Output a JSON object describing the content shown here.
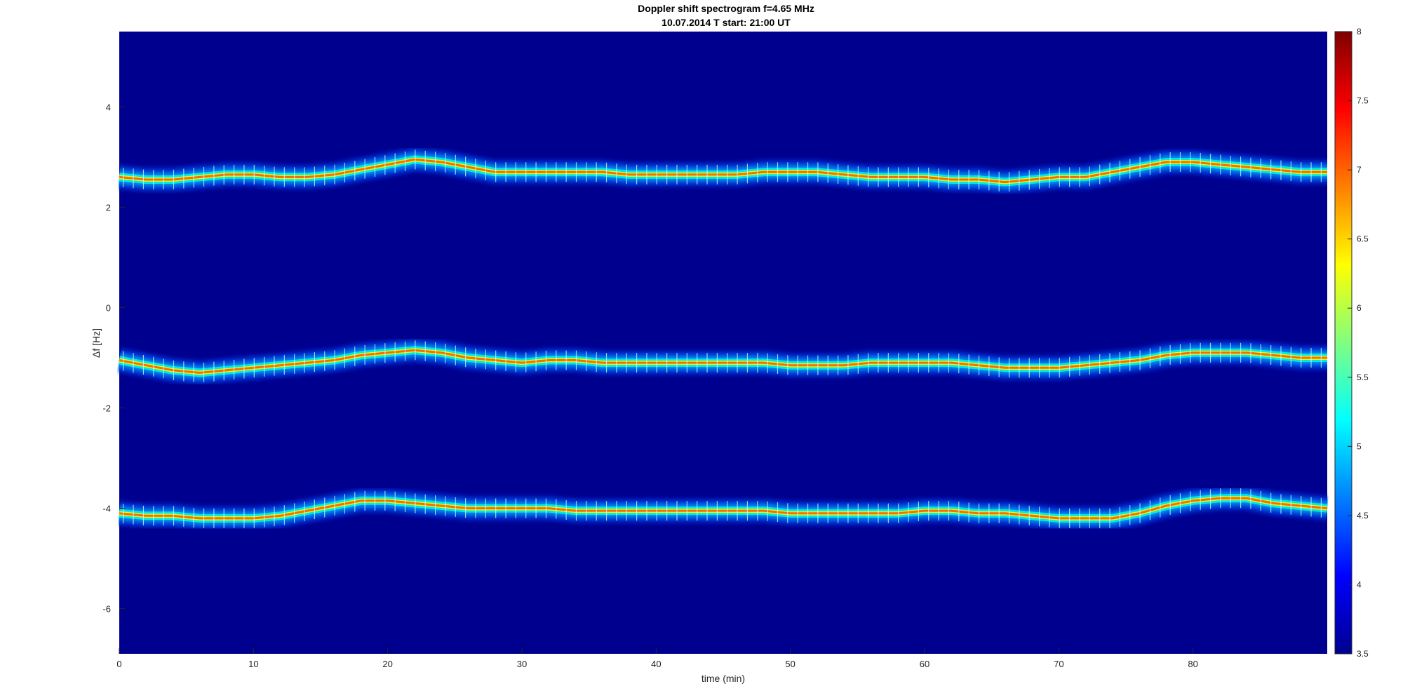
{
  "chart_data": {
    "type": "heatmap",
    "title": "Doppler shift spectrogram f=4.65 MHz",
    "subtitle": "10.07.2014   T start: 21:00 UT",
    "xlabel": "time (min)",
    "ylabel": "Δf [Hz]",
    "xlim": [
      0,
      90
    ],
    "ylim": [
      -6.9,
      5.5
    ],
    "x_ticks": [
      0,
      10,
      20,
      30,
      40,
      50,
      60,
      70,
      80
    ],
    "y_ticks": [
      4,
      2,
      0,
      -2,
      -4,
      -6
    ],
    "colorbar": {
      "colormap": "jet",
      "range": [
        3.5,
        8
      ],
      "ticks": [
        8,
        7.5,
        7,
        6.5,
        6,
        5.5,
        5,
        4.5,
        4,
        3.5
      ]
    },
    "background_color": "#00008f",
    "series": [
      {
        "time": [
          0,
          2,
          4,
          6,
          8,
          10,
          12,
          14,
          16,
          18,
          20,
          22,
          24,
          26,
          28,
          30,
          32,
          34,
          36,
          38,
          40,
          42,
          44,
          46,
          48,
          50,
          52,
          54,
          56,
          58,
          60,
          62,
          64,
          66,
          68,
          70,
          72,
          74,
          76,
          78,
          80,
          82,
          84,
          86,
          88,
          90
        ],
        "freq": [
          2.6,
          2.55,
          2.55,
          2.6,
          2.65,
          2.65,
          2.6,
          2.6,
          2.65,
          2.75,
          2.85,
          2.95,
          2.9,
          2.8,
          2.7,
          2.7,
          2.7,
          2.7,
          2.7,
          2.65,
          2.65,
          2.65,
          2.65,
          2.65,
          2.7,
          2.7,
          2.7,
          2.65,
          2.6,
          2.6,
          2.6,
          2.55,
          2.55,
          2.5,
          2.55,
          2.6,
          2.6,
          2.7,
          2.8,
          2.9,
          2.9,
          2.85,
          2.8,
          2.75,
          2.7,
          2.7
        ]
      },
      {
        "time": [
          0,
          2,
          4,
          6,
          8,
          10,
          12,
          14,
          16,
          18,
          20,
          22,
          24,
          26,
          28,
          30,
          32,
          34,
          36,
          38,
          40,
          42,
          44,
          46,
          48,
          50,
          52,
          54,
          56,
          58,
          60,
          62,
          64,
          66,
          68,
          70,
          72,
          74,
          76,
          78,
          80,
          82,
          84,
          86,
          88,
          90
        ],
        "freq": [
          -1.05,
          -1.15,
          -1.25,
          -1.3,
          -1.25,
          -1.2,
          -1.15,
          -1.1,
          -1.05,
          -0.95,
          -0.9,
          -0.85,
          -0.9,
          -1.0,
          -1.05,
          -1.1,
          -1.05,
          -1.05,
          -1.1,
          -1.1,
          -1.1,
          -1.1,
          -1.1,
          -1.1,
          -1.1,
          -1.15,
          -1.15,
          -1.15,
          -1.1,
          -1.1,
          -1.1,
          -1.1,
          -1.15,
          -1.2,
          -1.2,
          -1.2,
          -1.15,
          -1.1,
          -1.05,
          -0.95,
          -0.9,
          -0.9,
          -0.9,
          -0.95,
          -1.0,
          -1.0
        ]
      },
      {
        "time": [
          0,
          2,
          4,
          6,
          8,
          10,
          12,
          14,
          16,
          18,
          20,
          22,
          24,
          26,
          28,
          30,
          32,
          34,
          36,
          38,
          40,
          42,
          44,
          46,
          48,
          50,
          52,
          54,
          56,
          58,
          60,
          62,
          64,
          66,
          68,
          70,
          72,
          74,
          76,
          78,
          80,
          82,
          84,
          86,
          88,
          90
        ],
        "freq": [
          -4.1,
          -4.15,
          -4.15,
          -4.2,
          -4.2,
          -4.2,
          -4.15,
          -4.05,
          -3.95,
          -3.85,
          -3.85,
          -3.9,
          -3.95,
          -4.0,
          -4.0,
          -4.0,
          -4.0,
          -4.05,
          -4.05,
          -4.05,
          -4.05,
          -4.05,
          -4.05,
          -4.05,
          -4.05,
          -4.1,
          -4.1,
          -4.1,
          -4.1,
          -4.1,
          -4.05,
          -4.05,
          -4.1,
          -4.1,
          -4.15,
          -4.2,
          -4.2,
          -4.2,
          -4.1,
          -3.95,
          -3.85,
          -3.8,
          -3.8,
          -3.9,
          -3.95,
          -4.0
        ]
      }
    ]
  }
}
